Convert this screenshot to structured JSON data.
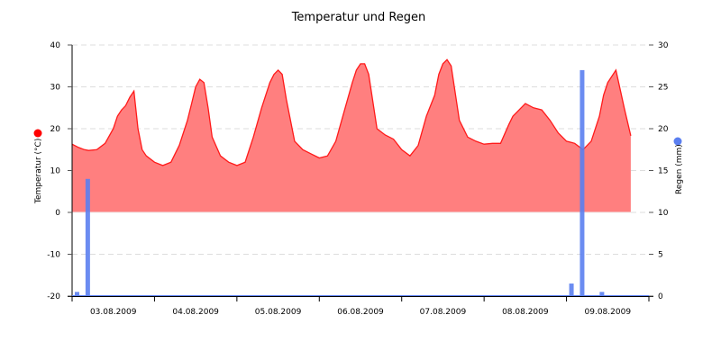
{
  "chart_data": {
    "type": "area+bar",
    "title": "Temperatur und Regen",
    "xlabel": "",
    "ylabel_left": "Temperatur (°C)",
    "ylabel_right": "Regen (mm)",
    "ylim_left": [
      -20,
      40
    ],
    "ylim_right": [
      0,
      30
    ],
    "yticks_left": [
      40,
      30,
      20,
      10,
      0,
      -10,
      -20
    ],
    "yticks_right": [
      30,
      25,
      20,
      15,
      10,
      5,
      0
    ],
    "x_tick_labels": [
      "03.08.2009",
      "04.08.2009",
      "05.08.2009",
      "06.08.2009",
      "07.08.2009",
      "08.08.2009",
      "09.08.2009"
    ],
    "grid": "horizontal dashed",
    "legend": "colored dots beside axis titles",
    "colors": {
      "temperature_line": "#ff1a1a",
      "temperature_fill": "#ff7f7f",
      "rain_bar": "#5b7ff0"
    },
    "series": [
      {
        "name": "Temperatur (°C)",
        "type": "area",
        "axis": "left",
        "x_day_fraction": [
          0.0,
          0.08,
          0.15,
          0.2,
          0.3,
          0.4,
          0.5,
          0.55,
          0.6,
          0.65,
          0.7,
          0.75,
          0.8,
          0.85,
          0.9,
          1.0,
          1.1,
          1.2,
          1.3,
          1.4,
          1.45,
          1.5,
          1.55,
          1.6,
          1.65,
          1.7,
          1.8,
          1.9,
          2.0,
          2.1,
          2.2,
          2.3,
          2.4,
          2.45,
          2.5,
          2.55,
          2.6,
          2.7,
          2.8,
          2.9,
          3.0,
          3.1,
          3.2,
          3.3,
          3.4,
          3.45,
          3.5,
          3.55,
          3.6,
          3.7,
          3.8,
          3.9,
          4.0,
          4.1,
          4.2,
          4.3,
          4.4,
          4.45,
          4.5,
          4.55,
          4.6,
          4.7,
          4.8,
          4.9,
          5.0,
          5.1,
          5.2,
          5.3,
          5.35,
          5.4,
          5.5,
          5.6,
          5.7,
          5.8,
          5.9,
          6.0,
          6.1,
          6.2,
          6.3,
          6.4,
          6.45,
          6.5,
          6.6,
          6.7,
          6.78
        ],
        "values": [
          16.3,
          15.5,
          15,
          14.8,
          15,
          16.5,
          20,
          23,
          24.5,
          25.5,
          27.5,
          29,
          20,
          15,
          13.5,
          12,
          11.2,
          12,
          16,
          22,
          26,
          30,
          31.8,
          31,
          25,
          18,
          13.5,
          12,
          11.2,
          12,
          18,
          25,
          31,
          33,
          34,
          33,
          27,
          17,
          15,
          14,
          13,
          13.5,
          17,
          24,
          31,
          34,
          35.5,
          35.5,
          33,
          20,
          18.5,
          17.5,
          15,
          13.5,
          16,
          23,
          28,
          33,
          35.5,
          36.5,
          35,
          22,
          18,
          17,
          16.3,
          16.5,
          16.5,
          21,
          23,
          24,
          26,
          25,
          24.5,
          22,
          19,
          17,
          16.5,
          15,
          17,
          23,
          28,
          31,
          34,
          25,
          18.3
        ]
      },
      {
        "name": "Regen (mm)",
        "type": "bar",
        "axis": "right",
        "x_day_fraction": [
          0.06,
          0.19,
          6.06,
          6.19,
          6.43
        ],
        "values": [
          0.5,
          14,
          1.5,
          27,
          0.5
        ]
      }
    ]
  }
}
